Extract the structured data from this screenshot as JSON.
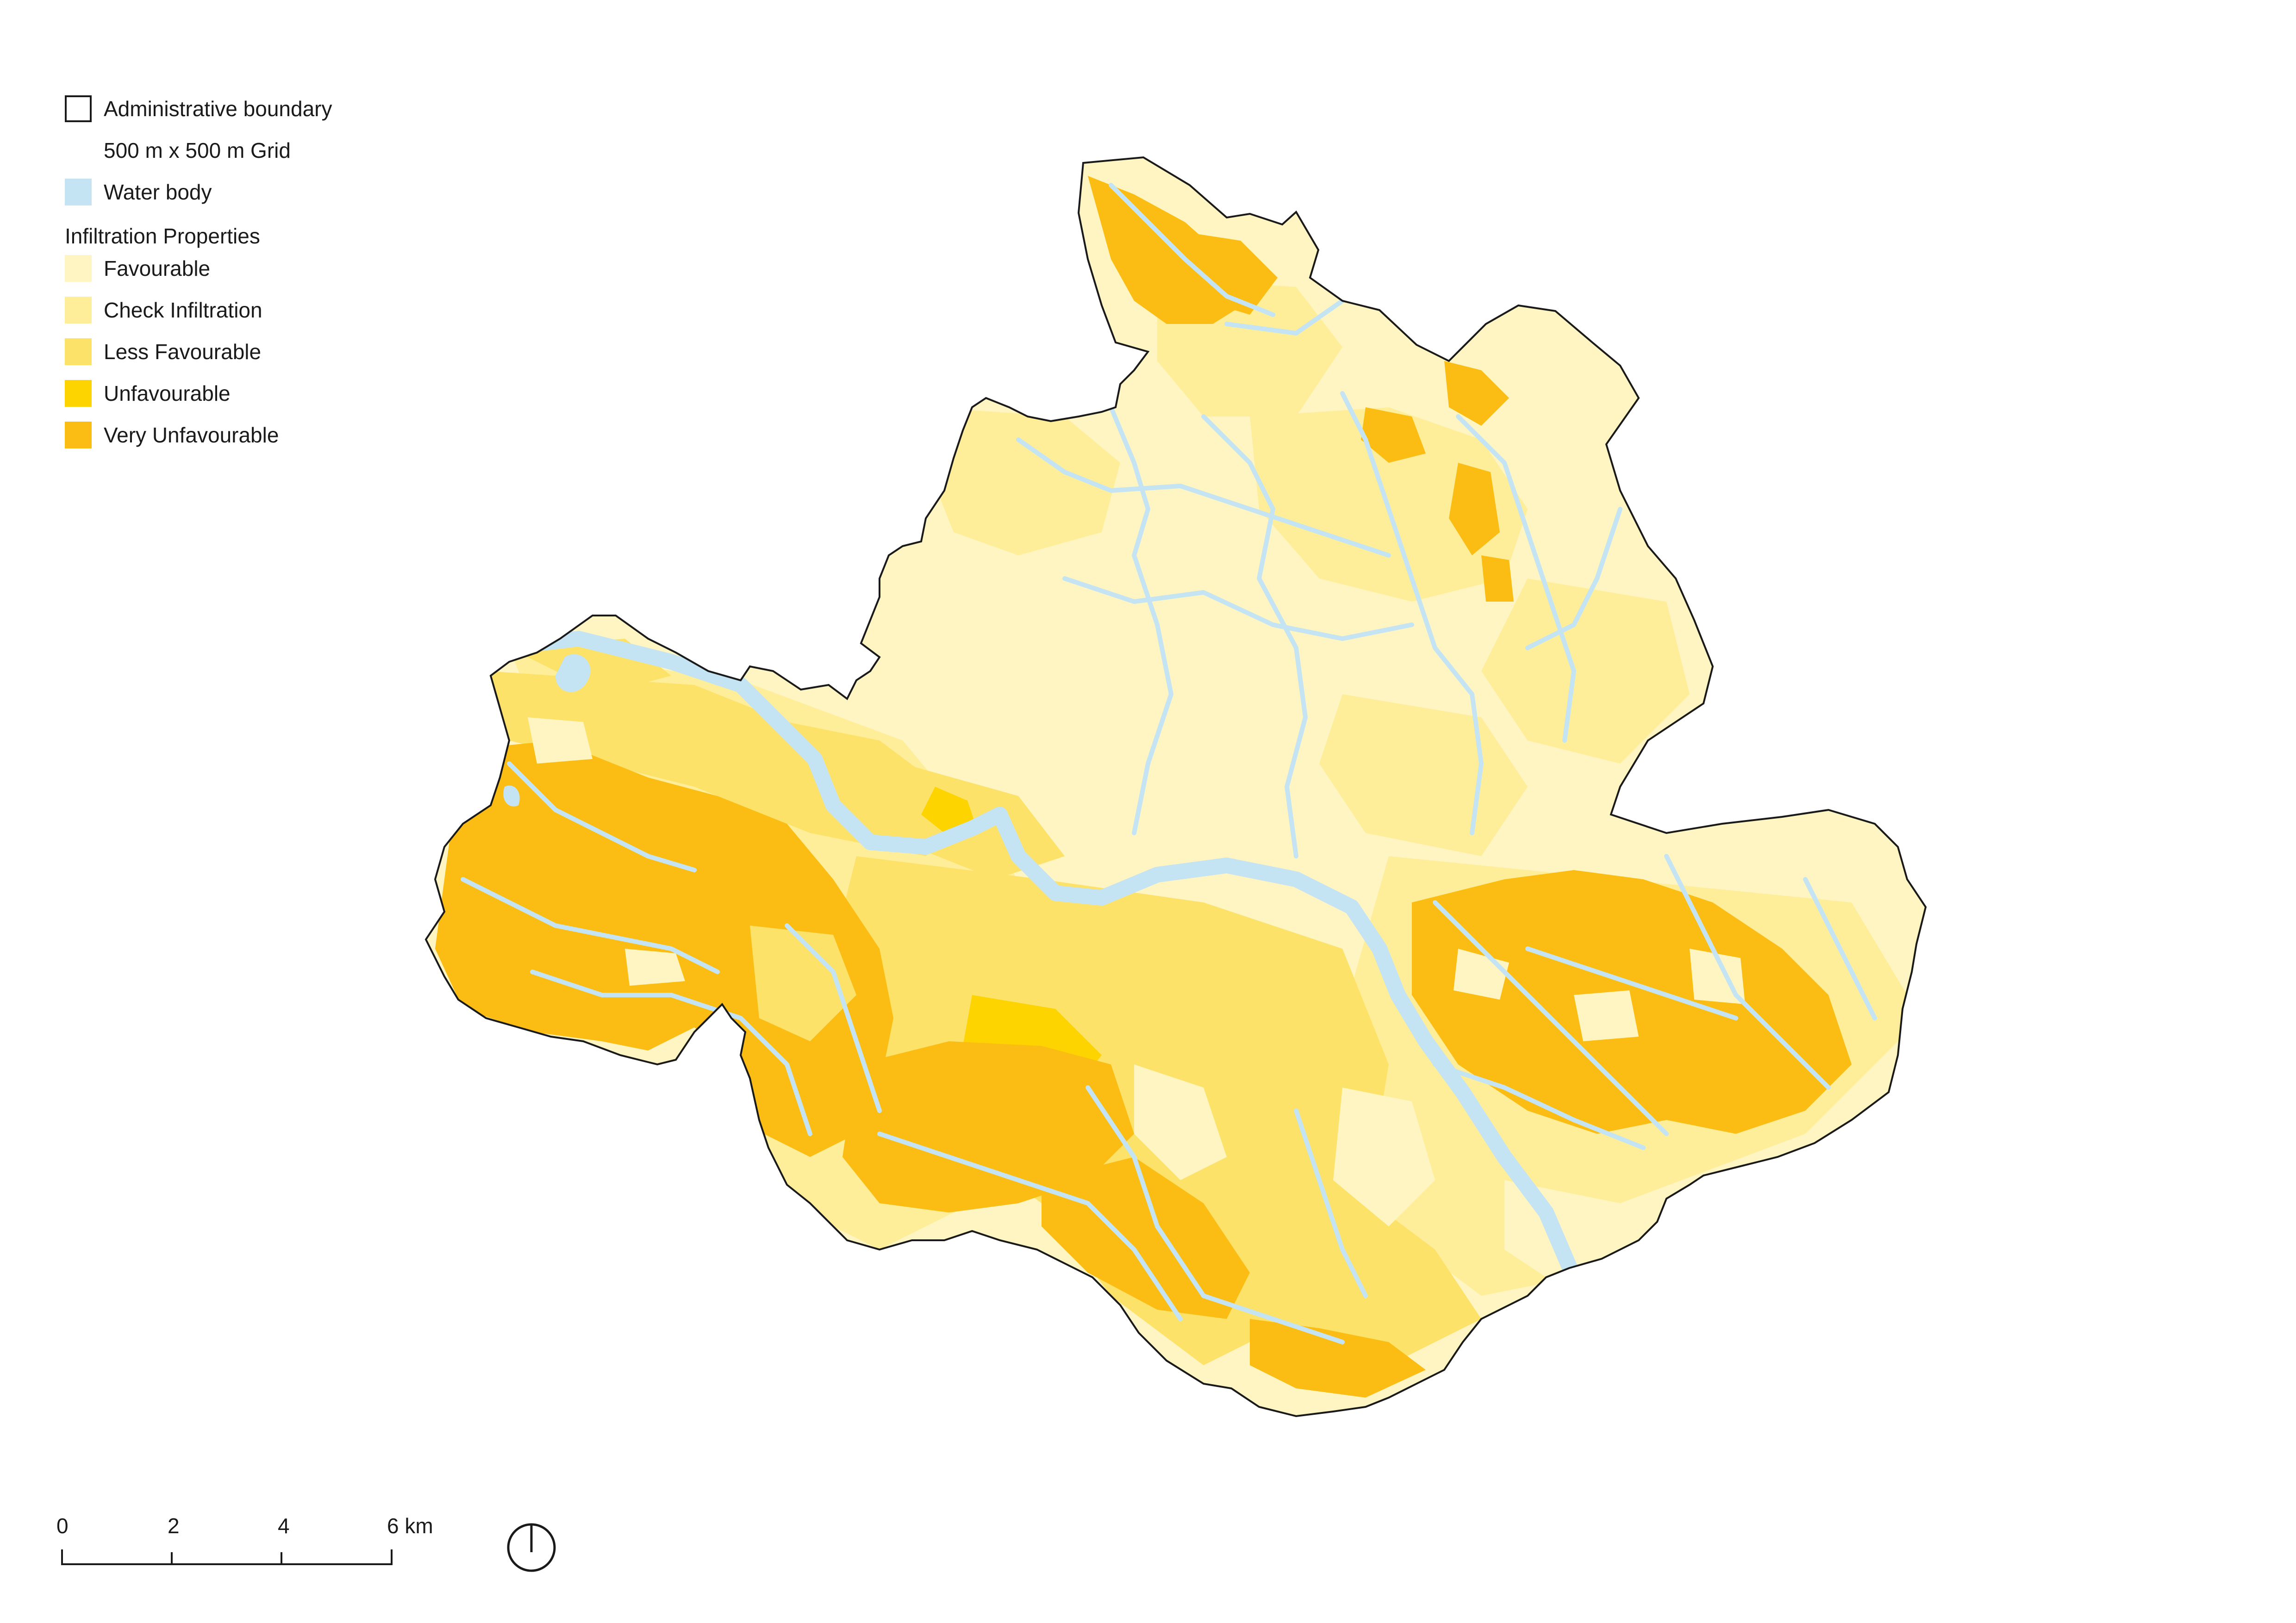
{
  "legend": {
    "boundary_label": "Administrative boundary",
    "grid_label": "500 m x 500 m Grid",
    "water_label": "Water body",
    "infiltration_heading": "Infiltration Properties",
    "classes": [
      {
        "label": "Favourable",
        "color": "#fff5c2"
      },
      {
        "label": "Check Infiltration",
        "color": "#ffee99"
      },
      {
        "label": "Less Favourable",
        "color": "#fde26a"
      },
      {
        "label": "Unfavourable",
        "color": "#fdd400"
      },
      {
        "label": "Very Unfavourable",
        "color": "#fbbd13"
      }
    ],
    "water_color": "#c4e3f3"
  },
  "scale_bar": {
    "ticks": [
      "0",
      "2",
      "4",
      "6 km"
    ]
  },
  "north_arrow": {
    "icon": "north-arrow-icon"
  }
}
